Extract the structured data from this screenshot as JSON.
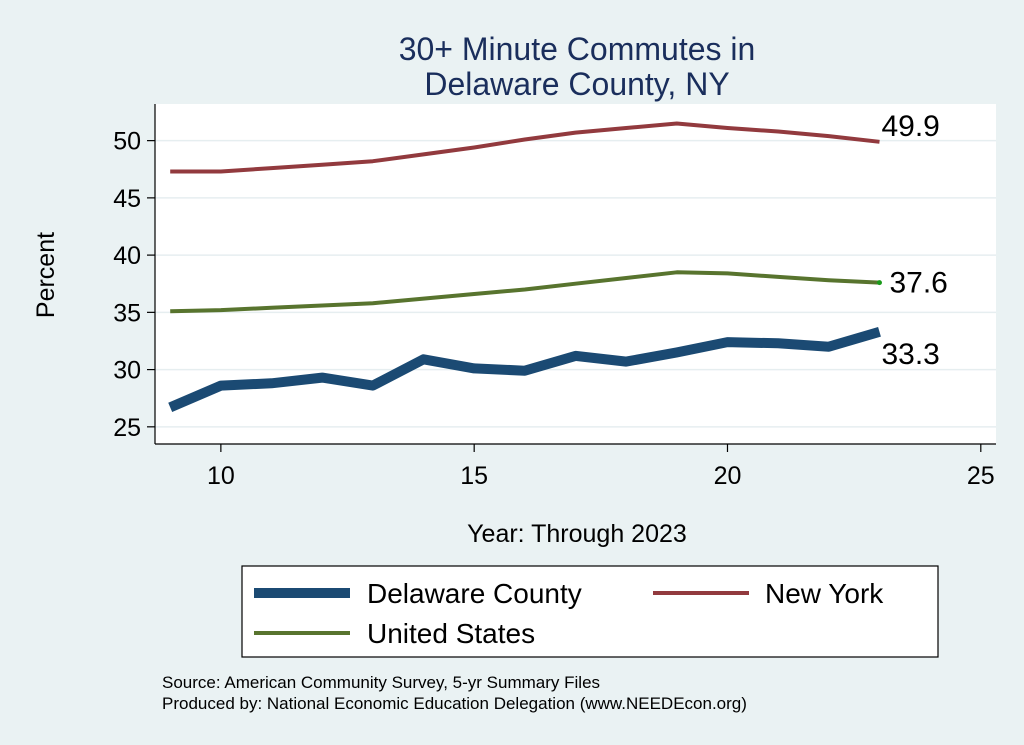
{
  "chart_data": {
    "type": "line",
    "title": [
      "30+ Minute Commutes in",
      "Delaware County, NY"
    ],
    "xlabel": "Year: Through 2023",
    "ylabel": "Percent",
    "xlim": [
      8.7,
      25.3
    ],
    "ylim": [
      23.5,
      53.2
    ],
    "xticks": [
      10,
      15,
      20,
      25
    ],
    "yticks": [
      25,
      30,
      35,
      40,
      45,
      50
    ],
    "grid": "horizontal",
    "legend": "bottom",
    "series": [
      {
        "name": "Delaware County",
        "color": "#1b4a73",
        "width": 10,
        "x": [
          9,
          10,
          11,
          12,
          13,
          14,
          15,
          16,
          17,
          18,
          19,
          20,
          21,
          22,
          23
        ],
        "y": [
          26.7,
          28.6,
          28.8,
          29.3,
          28.6,
          30.9,
          30.1,
          29.9,
          31.2,
          30.7,
          31.5,
          32.4,
          32.3,
          32.0,
          33.3
        ],
        "end_label": "33.3"
      },
      {
        "name": "New York",
        "color": "#923a3e",
        "width": 4,
        "x": [
          9,
          10,
          11,
          12,
          13,
          14,
          15,
          16,
          17,
          18,
          19,
          20,
          21,
          22,
          23
        ],
        "y": [
          47.3,
          47.3,
          47.6,
          47.9,
          48.2,
          48.8,
          49.4,
          50.1,
          50.7,
          51.1,
          51.5,
          51.1,
          50.8,
          50.4,
          49.9
        ],
        "end_label": "49.9"
      },
      {
        "name": "United States",
        "color": "#58742e",
        "width": 4,
        "x": [
          9,
          10,
          11,
          12,
          13,
          14,
          15,
          16,
          17,
          18,
          19,
          20,
          21,
          22,
          23
        ],
        "y": [
          35.1,
          35.2,
          35.4,
          35.6,
          35.8,
          36.2,
          36.6,
          37.0,
          37.5,
          38.0,
          38.5,
          38.4,
          38.1,
          37.8,
          37.6
        ],
        "end_label": "37.6"
      }
    ],
    "source_lines": [
      "Source: American Community Survey, 5-yr Summary Files",
      "Produced by: National Economic Education Delegation (www.NEEDEcon.org)"
    ]
  }
}
